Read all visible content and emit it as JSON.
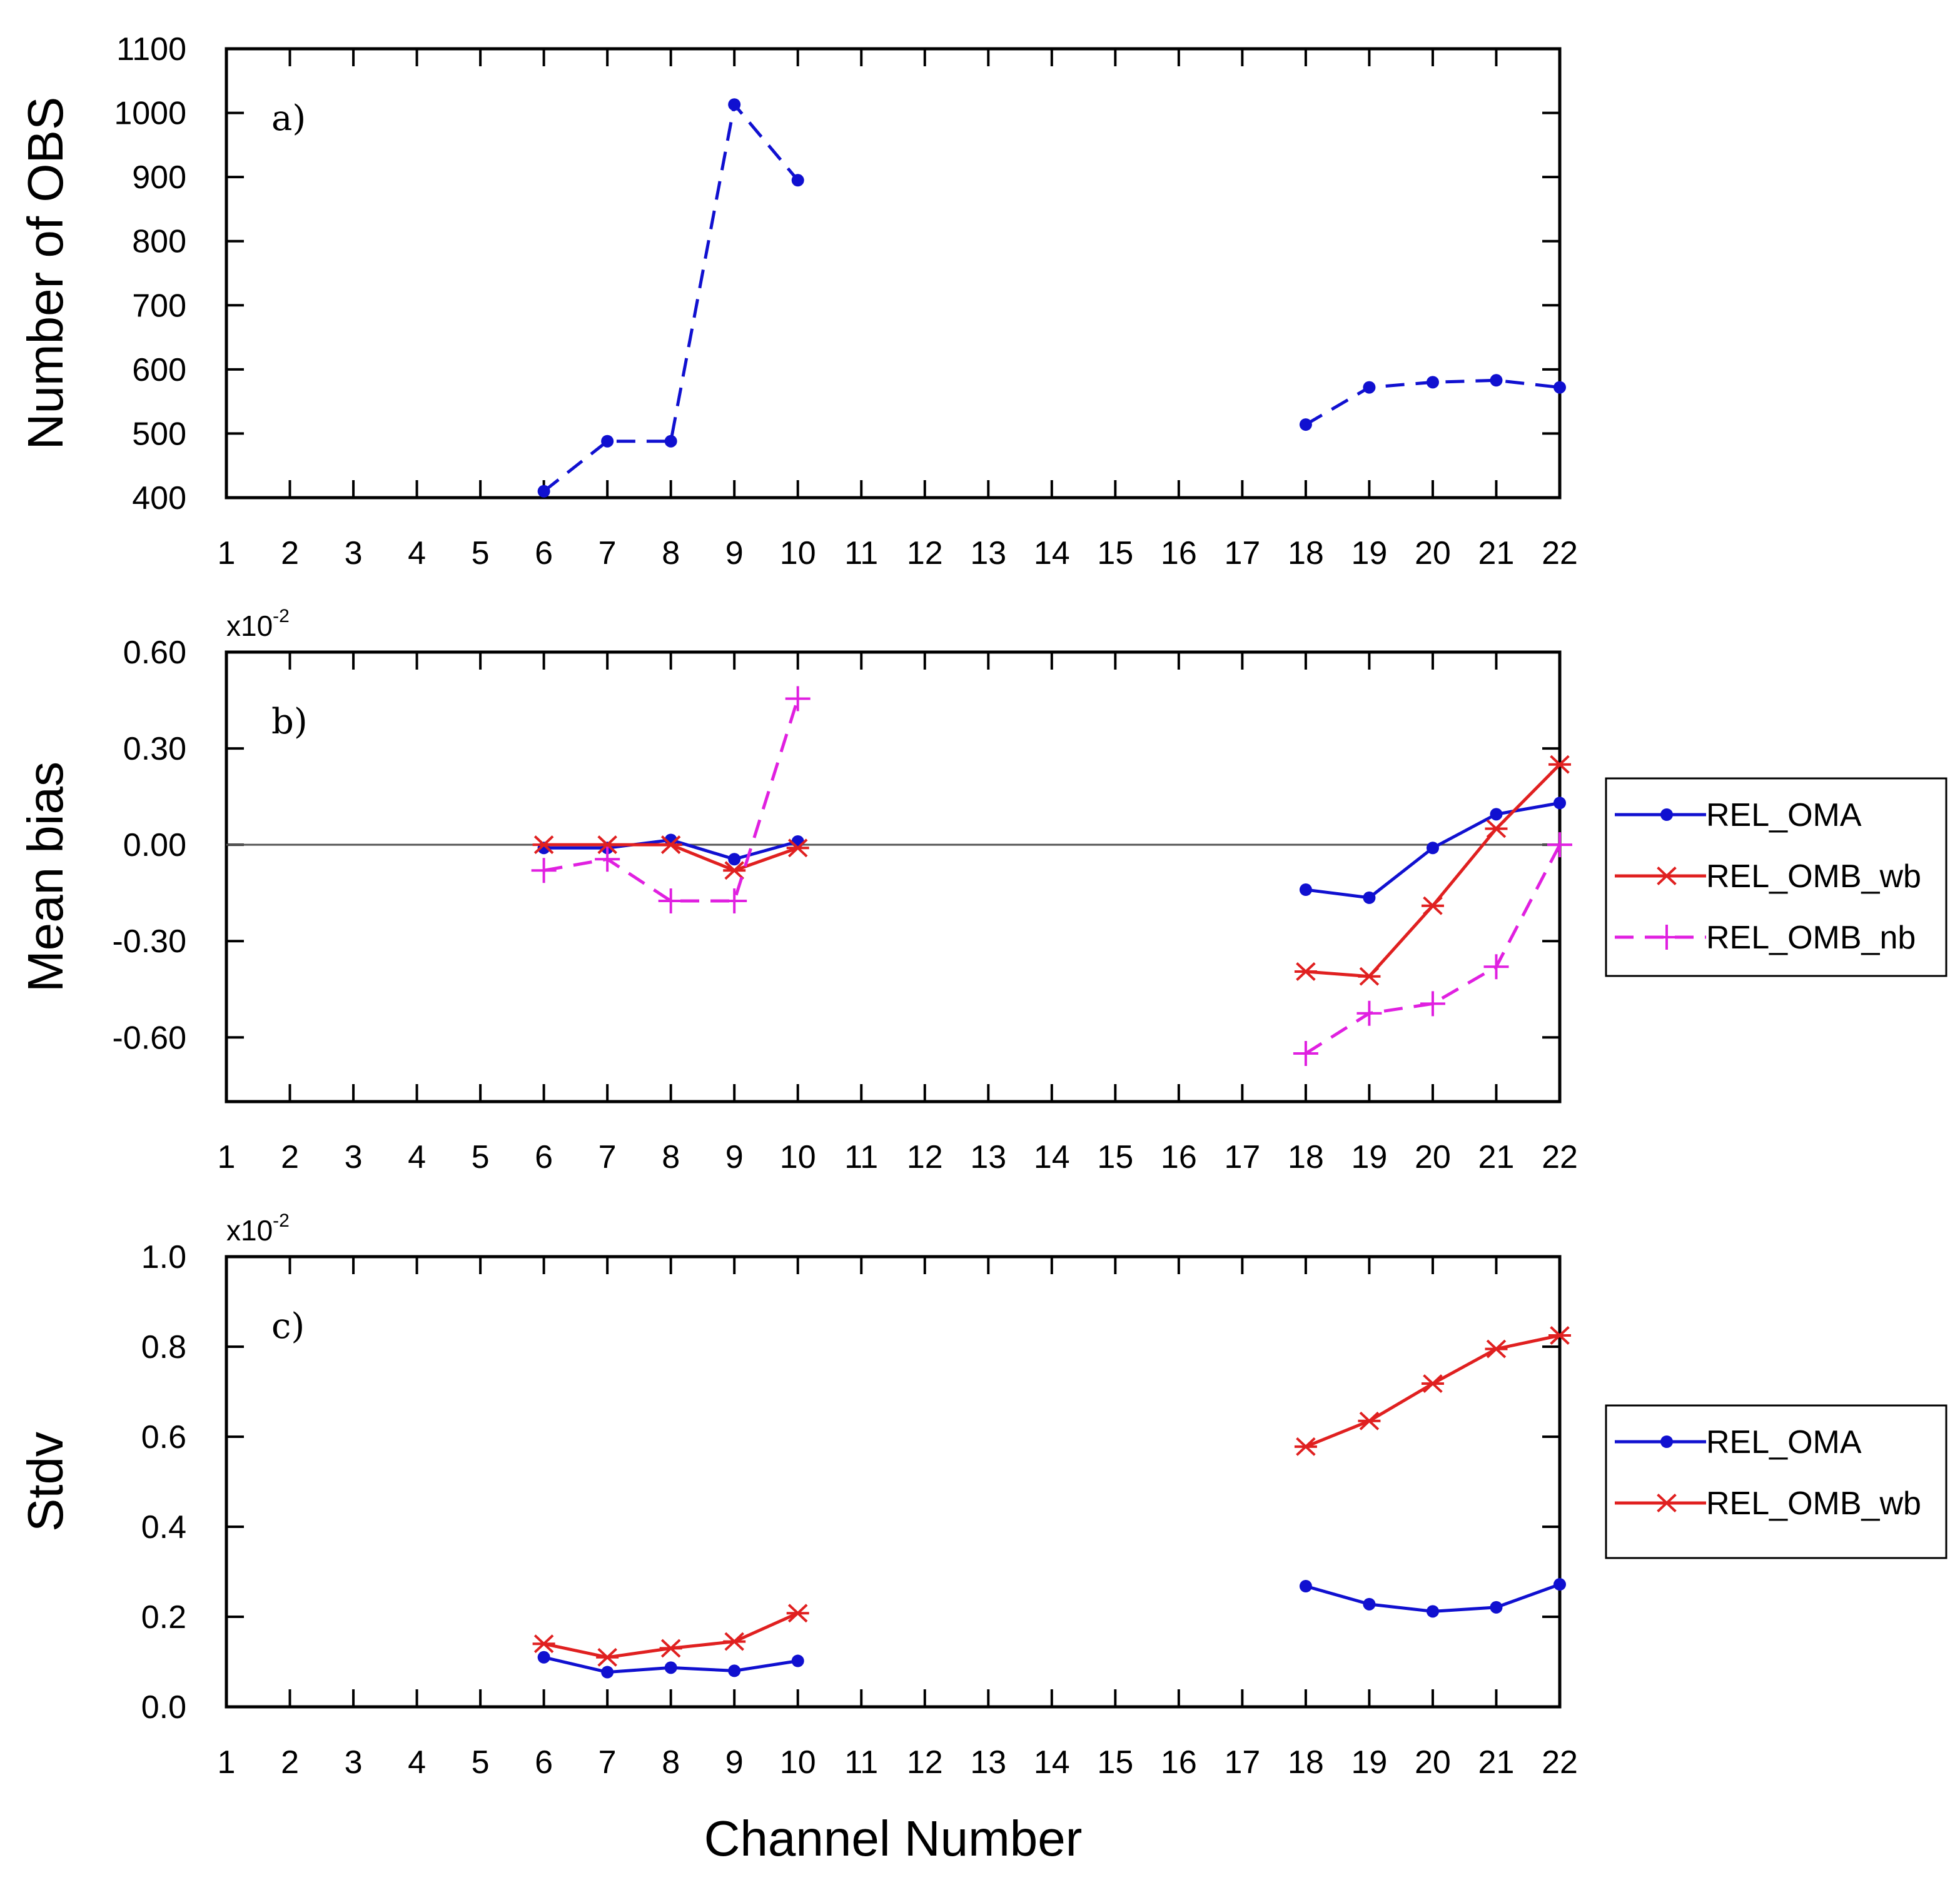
{
  "figure": {
    "xlabel": "Channel Number"
  },
  "chart_data": [
    {
      "type": "line",
      "panel_label": "a)",
      "ylabel": "Number of OBS",
      "ylim": [
        400,
        1100
      ],
      "yticks": [
        400,
        500,
        600,
        700,
        800,
        900,
        1000,
        1100
      ],
      "ytick_labels": [
        "400",
        "500",
        "600",
        "700",
        "800",
        "900",
        "1000",
        "1100"
      ],
      "y_exponent": "",
      "xlim": [
        1,
        22
      ],
      "xticks": [
        "1",
        "2",
        "3",
        "4",
        "5",
        "6",
        "7",
        "8",
        "9",
        "10",
        "11",
        "12",
        "13",
        "14",
        "15",
        "16",
        "17",
        "18",
        "19",
        "20",
        "21",
        "22"
      ],
      "zero_line": false,
      "legend": false,
      "series": [
        {
          "name": "Number of OBS",
          "color": "#1010d0",
          "dash": "dashed",
          "marker": "dot",
          "points": [
            [
              6,
              410
            ],
            [
              7,
              488
            ],
            [
              8,
              488
            ],
            [
              9,
              1013
            ],
            [
              10,
              895
            ],
            [
              18,
              514
            ],
            [
              19,
              572
            ],
            [
              20,
              580
            ],
            [
              21,
              583
            ],
            [
              22,
              572
            ]
          ]
        }
      ]
    },
    {
      "type": "line",
      "panel_label": "b)",
      "ylabel": "Mean bias",
      "ylim": [
        -0.8,
        0.6
      ],
      "yticks": [
        -0.6,
        -0.3,
        0.0,
        0.3,
        0.6
      ],
      "ytick_labels": [
        "-0.60",
        "-0.30",
        "0.00",
        "0.30",
        "0.60"
      ],
      "y_exponent": "x10",
      "y_exponent_power": "-2",
      "xlim": [
        1,
        22
      ],
      "xticks": [
        "1",
        "2",
        "3",
        "4",
        "5",
        "6",
        "7",
        "8",
        "9",
        "10",
        "11",
        "12",
        "13",
        "14",
        "15",
        "16",
        "17",
        "18",
        "19",
        "20",
        "21",
        "22"
      ],
      "zero_line": true,
      "legend": true,
      "series": [
        {
          "name": "REL_OMA",
          "color": "#1010d0",
          "dash": "solid",
          "marker": "dot",
          "points": [
            [
              6,
              -0.01
            ],
            [
              7,
              -0.01
            ],
            [
              8,
              0.015
            ],
            [
              9,
              -0.045
            ],
            [
              10,
              0.01
            ],
            [
              18,
              -0.14
            ],
            [
              19,
              -0.165
            ],
            [
              20,
              -0.01
            ],
            [
              21,
              0.095
            ],
            [
              22,
              0.13
            ]
          ]
        },
        {
          "name": "REL_OMB_wb",
          "color": "#e02020",
          "dash": "solid",
          "marker": "asterisk",
          "points": [
            [
              6,
              0.0
            ],
            [
              7,
              0.0
            ],
            [
              8,
              0.0
            ],
            [
              9,
              -0.08
            ],
            [
              10,
              -0.01
            ],
            [
              18,
              -0.395
            ],
            [
              19,
              -0.41
            ],
            [
              20,
              -0.19
            ],
            [
              21,
              0.05
            ],
            [
              22,
              0.25
            ]
          ]
        },
        {
          "name": "REL_OMB_nb",
          "color": "#e020e0",
          "dash": "dashed",
          "marker": "plus",
          "points": [
            [
              6,
              -0.08
            ],
            [
              7,
              -0.045
            ],
            [
              8,
              -0.175
            ],
            [
              9,
              -0.175
            ],
            [
              10,
              0.455
            ],
            [
              18,
              -0.65
            ],
            [
              19,
              -0.525
            ],
            [
              20,
              -0.495
            ],
            [
              21,
              -0.38
            ],
            [
              22,
              0.0
            ]
          ]
        }
      ]
    },
    {
      "type": "line",
      "panel_label": "c)",
      "ylabel": "Stdv",
      "ylim": [
        0.0,
        1.0
      ],
      "yticks": [
        0.0,
        0.2,
        0.4,
        0.6,
        0.8,
        1.0
      ],
      "ytick_labels": [
        "0.0",
        "0.2",
        "0.4",
        "0.6",
        "0.8",
        "1.0"
      ],
      "y_exponent": "x10",
      "y_exponent_power": "-2",
      "xlim": [
        1,
        22
      ],
      "xticks": [
        "1",
        "2",
        "3",
        "4",
        "5",
        "6",
        "7",
        "8",
        "9",
        "10",
        "11",
        "12",
        "13",
        "14",
        "15",
        "16",
        "17",
        "18",
        "19",
        "20",
        "21",
        "22"
      ],
      "zero_line": false,
      "legend": true,
      "series": [
        {
          "name": "REL_OMA",
          "color": "#1010d0",
          "dash": "solid",
          "marker": "dot",
          "points": [
            [
              6,
              0.11
            ],
            [
              7,
              0.077
            ],
            [
              8,
              0.087
            ],
            [
              9,
              0.08
            ],
            [
              10,
              0.102
            ],
            [
              18,
              0.268
            ],
            [
              19,
              0.228
            ],
            [
              20,
              0.212
            ],
            [
              21,
              0.221
            ],
            [
              22,
              0.272
            ]
          ]
        },
        {
          "name": "REL_OMB_wb",
          "color": "#e02020",
          "dash": "solid",
          "marker": "asterisk",
          "points": [
            [
              6,
              0.14
            ],
            [
              7,
              0.11
            ],
            [
              8,
              0.13
            ],
            [
              9,
              0.145
            ],
            [
              10,
              0.208
            ],
            [
              18,
              0.578
            ],
            [
              19,
              0.635
            ],
            [
              20,
              0.718
            ],
            [
              21,
              0.795
            ],
            [
              22,
              0.825
            ]
          ]
        }
      ]
    }
  ]
}
